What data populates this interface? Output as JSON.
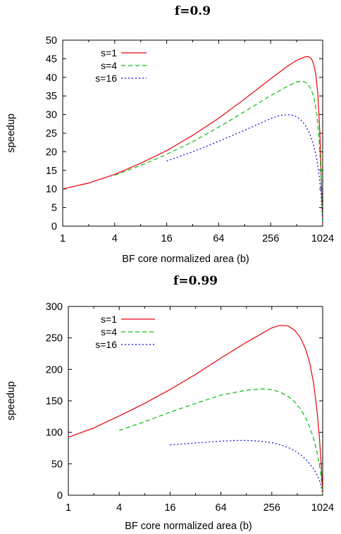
{
  "chart_data": [
    {
      "type": "line",
      "title": "f=0.9",
      "xlabel": "BF core normalized area (b)",
      "ylabel": "speedup",
      "xscale": "log2",
      "xlim": [
        1,
        1024
      ],
      "ylim": [
        0,
        50
      ],
      "xticks": [
        1,
        4,
        16,
        64,
        256,
        1024
      ],
      "xtick_labels": [
        "1",
        "4",
        "16",
        "64",
        "256",
        "1024"
      ],
      "yticks": [
        0,
        5,
        10,
        15,
        20,
        25,
        30,
        35,
        40,
        45,
        50
      ],
      "grid": false,
      "legend_position": "top-left",
      "series": [
        {
          "name": "s=1",
          "color": "#e8000b",
          "dash": "solid",
          "x": [
            1,
            2,
            4,
            8,
            16,
            32,
            64,
            128,
            256,
            400,
            512,
            640,
            700,
            760,
            800,
            850,
            900,
            950,
            980,
            1000,
            1010,
            1020,
            1024
          ],
          "y": [
            10.0,
            11.6,
            13.9,
            16.9,
            20.3,
            24.4,
            29.0,
            34.2,
            39.6,
            43.0,
            44.6,
            45.5,
            45.6,
            45.0,
            43.8,
            41.0,
            35.5,
            25.0,
            15.0,
            8.0,
            5.0,
            2.0,
            0.5
          ]
        },
        {
          "name": "s=4",
          "color": "#00c000",
          "dash": "dashed",
          "x": [
            4,
            8,
            16,
            32,
            64,
            128,
            256,
            400,
            512,
            600,
            680,
            760,
            820,
            880,
            940,
            980,
            1010,
            1024
          ],
          "y": [
            13.7,
            16.3,
            19.3,
            22.7,
            26.6,
            30.8,
            35.1,
            37.6,
            38.8,
            39.0,
            38.4,
            36.6,
            34.0,
            29.8,
            22.0,
            13.5,
            5.0,
            0.5
          ]
        },
        {
          "name": "s=16",
          "color": "#0000e0",
          "dash": "dotted",
          "x": [
            16,
            32,
            64,
            128,
            256,
            320,
            400,
            480,
            560,
            640,
            720,
            800,
            880,
            940,
            980,
            1010,
            1024
          ],
          "y": [
            17.5,
            20.0,
            22.8,
            25.8,
            28.9,
            29.7,
            30.0,
            29.7,
            28.8,
            27.2,
            25.0,
            22.0,
            17.8,
            12.9,
            8.5,
            3.5,
            0.5
          ]
        }
      ]
    },
    {
      "type": "line",
      "title": "f=0.99",
      "xlabel": "BF core normalized area (b)",
      "ylabel": "speedup",
      "xscale": "log2",
      "xlim": [
        1,
        1024
      ],
      "ylim": [
        0,
        300
      ],
      "xticks": [
        1,
        4,
        16,
        64,
        256,
        1024
      ],
      "xtick_labels": [
        "1",
        "4",
        "16",
        "64",
        "256",
        "1024"
      ],
      "yticks": [
        0,
        50,
        100,
        150,
        200,
        250,
        300
      ],
      "grid": false,
      "legend_position": "top-left",
      "series": [
        {
          "name": "s=1",
          "color": "#e8000b",
          "dash": "solid",
          "x": [
            1,
            2,
            4,
            8,
            16,
            32,
            64,
            128,
            256,
            320,
            400,
            480,
            560,
            640,
            720,
            800,
            880,
            940,
            980,
            1000,
            1024
          ],
          "y": [
            92,
            107,
            126,
            146,
            168,
            192,
            218,
            243,
            266,
            270,
            269,
            262,
            250,
            233,
            210,
            178,
            133,
            89,
            52,
            30,
            2
          ]
        },
        {
          "name": "s=4",
          "color": "#00c000",
          "dash": "dashed",
          "x": [
            4,
            8,
            16,
            32,
            64,
            128,
            200,
            256,
            320,
            400,
            480,
            560,
            640,
            720,
            800,
            880,
            940,
            980,
            1024
          ],
          "y": [
            103,
            117,
            132,
            146,
            159,
            167,
            169,
            168,
            164,
            157,
            148,
            137,
            124,
            108,
            90,
            68,
            47,
            30,
            2
          ]
        },
        {
          "name": "s=16",
          "color": "#0000e0",
          "dash": "dotted",
          "x": [
            16,
            32,
            64,
            100,
            128,
            160,
            200,
            256,
            320,
            400,
            480,
            560,
            640,
            720,
            800,
            880,
            940,
            980,
            1024
          ],
          "y": [
            80,
            83,
            86,
            87,
            87,
            86.5,
            85.5,
            83.5,
            80.5,
            76,
            70.5,
            64.5,
            57.5,
            50,
            42,
            32,
            23,
            15,
            2
          ]
        }
      ]
    }
  ]
}
